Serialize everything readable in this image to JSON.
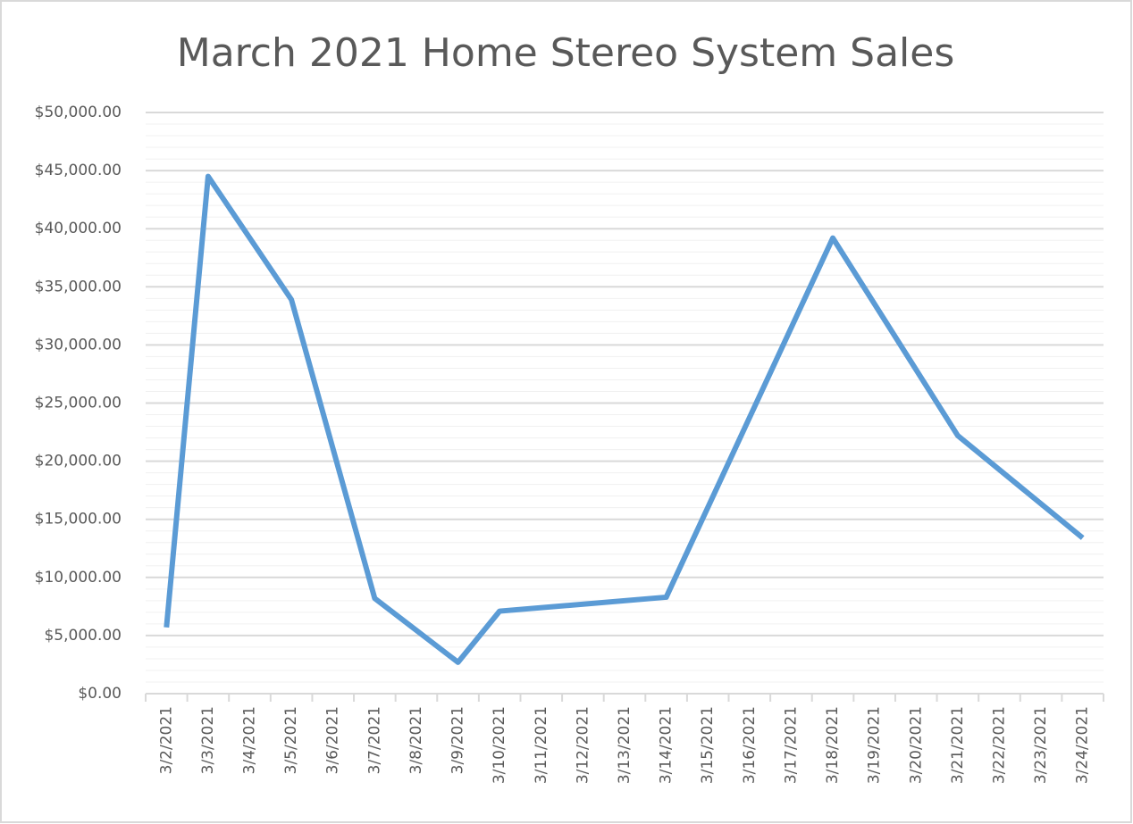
{
  "chart_data": {
    "type": "line",
    "title": "March 2021 Home Stereo System Sales",
    "x": [
      "3/2/2021",
      "3/3/2021",
      "3/5/2021",
      "3/7/2021",
      "3/9/2021",
      "3/10/2021",
      "3/14/2021",
      "3/18/2021",
      "3/21/2021",
      "3/24/2021"
    ],
    "values": [
      5700,
      44500,
      33900,
      8200,
      2700,
      7100,
      8300,
      39200,
      22200,
      13400
    ],
    "color": "#5b9bd5",
    "xticks": [
      "3/2/2021",
      "3/3/2021",
      "3/4/2021",
      "3/5/2021",
      "3/6/2021",
      "3/7/2021",
      "3/8/2021",
      "3/9/2021",
      "3/10/2021",
      "3/11/2021",
      "3/12/2021",
      "3/13/2021",
      "3/14/2021",
      "3/15/2021",
      "3/16/2021",
      "3/17/2021",
      "3/18/2021",
      "3/19/2021",
      "3/20/2021",
      "3/21/2021",
      "3/22/2021",
      "3/23/2021",
      "3/24/2021"
    ],
    "ylim": [
      0,
      50000
    ],
    "yticks": [
      {
        "value": 0,
        "label": "$0.00"
      },
      {
        "value": 5000,
        "label": "$5,000.00"
      },
      {
        "value": 10000,
        "label": "$10,000.00"
      },
      {
        "value": 15000,
        "label": "$15,000.00"
      },
      {
        "value": 20000,
        "label": "$20,000.00"
      },
      {
        "value": 25000,
        "label": "$25,000.00"
      },
      {
        "value": 30000,
        "label": "$30,000.00"
      },
      {
        "value": 35000,
        "label": "$35,000.00"
      },
      {
        "value": 40000,
        "label": "$40,000.00"
      },
      {
        "value": 45000,
        "label": "$45,000.00"
      },
      {
        "value": 50000,
        "label": "$50,000.00"
      }
    ],
    "grid": true,
    "minor_grid": true
  }
}
